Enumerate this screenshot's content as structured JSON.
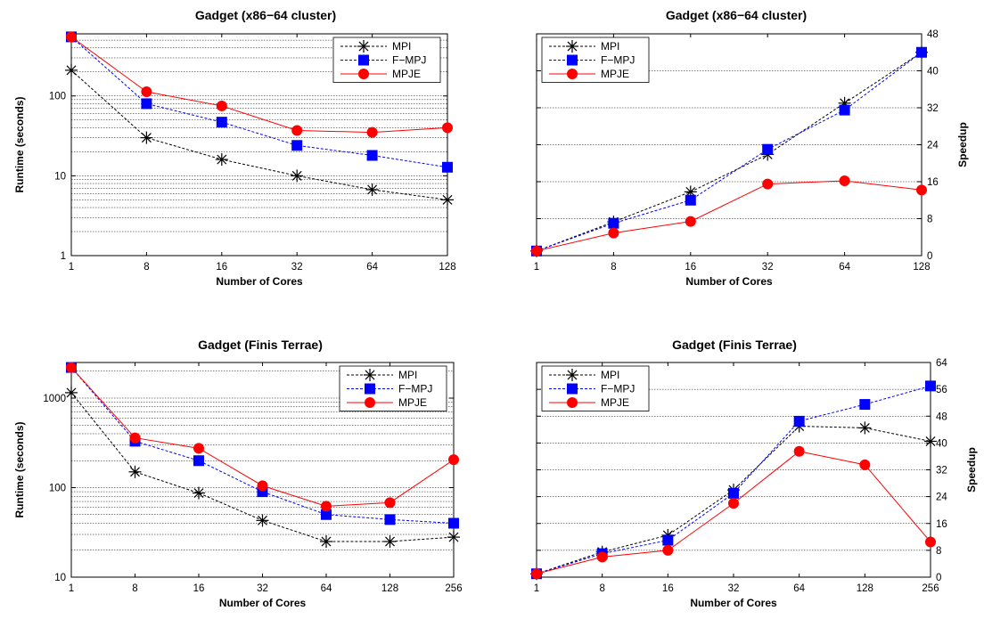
{
  "chart_data": [
    {
      "type": "line",
      "title": "Gadget  (x86−64 cluster)",
      "xlabel": "Number of Cores",
      "ylabel": "Runtime (seconds)",
      "yscale": "log",
      "ylim": [
        1,
        600
      ],
      "categories": [
        "1",
        "8",
        "16",
        "32",
        "64",
        "128"
      ],
      "yticks": [
        1,
        10,
        100
      ],
      "ytick_labels": [
        "1",
        "10",
        "100"
      ],
      "legend": "top-right",
      "grid": "horizontal",
      "series": [
        {
          "name": "MPI",
          "values": [
            210,
            30,
            16,
            10,
            6.7,
            5
          ]
        },
        {
          "name": "F−MPJ",
          "values": [
            550,
            80,
            47,
            24,
            18,
            12.8
          ]
        },
        {
          "name": "MPJE",
          "values": [
            550,
            113,
            75,
            37,
            35,
            40
          ]
        }
      ]
    },
    {
      "type": "line",
      "title": "Gadget (x86−64 cluster)",
      "xlabel": "Number of Cores",
      "ylabel": "Speedup",
      "yscale": "linear",
      "yaxis_side": "right",
      "ylim": [
        0,
        48
      ],
      "categories": [
        "1",
        "8",
        "16",
        "32",
        "64",
        "128"
      ],
      "yticks": [
        0,
        8,
        16,
        24,
        32,
        40,
        48
      ],
      "ytick_labels": [
        "0",
        "8",
        "16",
        "24",
        "32",
        "40",
        "48"
      ],
      "legend": "top-left",
      "grid": "horizontal",
      "series": [
        {
          "name": "MPI",
          "values": [
            1,
            7.3,
            13.8,
            21.9,
            33,
            44
          ]
        },
        {
          "name": "F−MPJ",
          "values": [
            1,
            7.0,
            12,
            23,
            31.5,
            44
          ]
        },
        {
          "name": "MPJE",
          "values": [
            1,
            4.9,
            7.4,
            15.5,
            16.2,
            14.2
          ]
        }
      ]
    },
    {
      "type": "line",
      "title": "Gadget  (Finis Terrae)",
      "xlabel": "Number of Cores",
      "ylabel": "Runtime (seconds)",
      "yscale": "log",
      "ylim": [
        10,
        2500
      ],
      "categories": [
        "1",
        "8",
        "16",
        "32",
        "64",
        "128",
        "256"
      ],
      "yticks": [
        10,
        100,
        1000
      ],
      "ytick_labels": [
        "10",
        "100",
        "1000"
      ],
      "legend": "top-right",
      "grid": "horizontal",
      "series": [
        {
          "name": "MPI",
          "values": [
            1150,
            150,
            87,
            43,
            25,
            25,
            28
          ]
        },
        {
          "name": "F−MPJ",
          "values": [
            2200,
            330,
            200,
            90,
            50,
            44,
            40
          ]
        },
        {
          "name": "MPJE",
          "values": [
            2200,
            360,
            275,
            105,
            62,
            68,
            205
          ]
        }
      ]
    },
    {
      "type": "line",
      "title": "Gadget (Finis Terrae)",
      "xlabel": "Number of Cores",
      "ylabel": "Speedup",
      "yscale": "linear",
      "yaxis_side": "right",
      "ylim": [
        0,
        64
      ],
      "categories": [
        "1",
        "8",
        "16",
        "32",
        "64",
        "128",
        "256"
      ],
      "yticks": [
        0,
        8,
        16,
        24,
        32,
        40,
        48,
        56,
        64
      ],
      "ytick_labels": [
        "0",
        "8",
        "16",
        "24",
        "32",
        "40",
        "48",
        "56",
        "64"
      ],
      "legend": "top-left",
      "grid": "horizontal",
      "series": [
        {
          "name": "MPI",
          "values": [
            1,
            7.5,
            12.5,
            26,
            45,
            44.5,
            40.5
          ]
        },
        {
          "name": "F−MPJ",
          "values": [
            1,
            7,
            11,
            25,
            46.5,
            51.5,
            57
          ]
        },
        {
          "name": "MPJE",
          "values": [
            1,
            6,
            8,
            22,
            37.5,
            33.5,
            10.5
          ]
        }
      ]
    }
  ],
  "style": {
    "series_colors": {
      "MPI": "#000000",
      "F−MPJ": "#0000ff",
      "MPJE": "#ff0000"
    },
    "series_markers": {
      "MPI": "asterisk",
      "F−MPJ": "square",
      "MPJE": "circle"
    },
    "series_dash": {
      "MPI": "dashed",
      "F−MPJ": "dashed",
      "MPJE": "solid"
    },
    "grid_color": "#000000"
  }
}
